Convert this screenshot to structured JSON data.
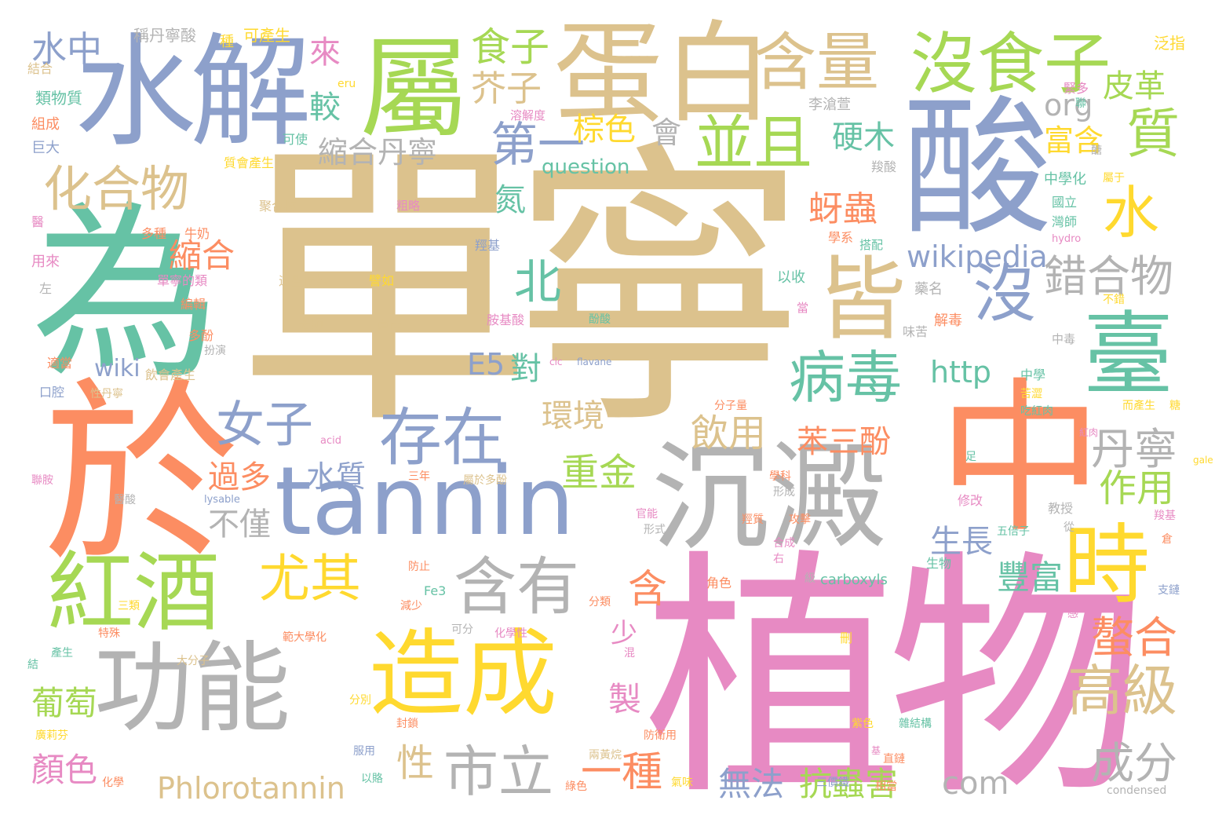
{
  "palette": {
    "tan": "#dcc28d",
    "orange": "#fc8d62",
    "blue": "#8da0cb",
    "pink": "#e78ac3",
    "green": "#a6d854",
    "yellow": "#ffd92f",
    "teal": "#66c2a5",
    "gray": "#b3b3b3"
  },
  "words": [
    {
      "text": "單寧",
      "color": "tan"
    },
    {
      "text": "植物",
      "color": "pink"
    },
    {
      "text": "於",
      "color": "orange"
    },
    {
      "text": "為",
      "color": "teal"
    },
    {
      "text": "中",
      "color": "orange"
    },
    {
      "text": "酸",
      "color": "blue"
    },
    {
      "text": "沉澱",
      "color": "gray"
    },
    {
      "text": "水解",
      "color": "blue"
    },
    {
      "text": "蛋白",
      "color": "tan"
    },
    {
      "text": "屬",
      "color": "green"
    },
    {
      "text": "tannin",
      "color": "blue"
    },
    {
      "text": "功能",
      "color": "gray"
    },
    {
      "text": "造成",
      "color": "yellow"
    },
    {
      "text": "紅酒",
      "color": "green"
    },
    {
      "text": "臺",
      "color": "teal"
    },
    {
      "text": "時",
      "color": "yellow"
    },
    {
      "text": "含量",
      "color": "tan"
    },
    {
      "text": "沒食子",
      "color": "green"
    },
    {
      "text": "皆",
      "color": "tan"
    },
    {
      "text": "並且",
      "color": "green"
    },
    {
      "text": "存在",
      "color": "blue"
    },
    {
      "text": "含有",
      "color": "gray"
    },
    {
      "text": "病毒",
      "color": "teal"
    },
    {
      "text": "尤其",
      "color": "yellow"
    },
    {
      "text": "化合物",
      "color": "tan"
    },
    {
      "text": "女子",
      "color": "blue"
    },
    {
      "text": "沒",
      "color": "blue"
    },
    {
      "text": "水",
      "color": "yellow"
    },
    {
      "text": "質",
      "color": "green"
    },
    {
      "text": "第一",
      "color": "blue"
    },
    {
      "text": "高級",
      "color": "tan"
    },
    {
      "text": "市立",
      "color": "gray"
    },
    {
      "text": "水中",
      "color": "blue"
    },
    {
      "text": "食子",
      "color": "green"
    },
    {
      "text": "芥子",
      "color": "tan"
    },
    {
      "text": "錯合物",
      "color": "gray"
    },
    {
      "text": "丹寧",
      "color": "gray"
    },
    {
      "text": "成分",
      "color": "gray"
    },
    {
      "text": "螯合",
      "color": "orange"
    },
    {
      "text": "一種",
      "color": "orange"
    },
    {
      "text": "皮革",
      "color": "green"
    },
    {
      "text": "縮合丹寧",
      "color": "gray"
    },
    {
      "text": "蚜蟲",
      "color": "orange"
    },
    {
      "text": "北",
      "color": "teal"
    },
    {
      "text": "重金",
      "color": "green"
    },
    {
      "text": "飲用",
      "color": "tan"
    },
    {
      "text": "作用",
      "color": "green"
    },
    {
      "text": "苯三酚",
      "color": "orange"
    },
    {
      "text": "Phlorotannin",
      "color": "tan"
    },
    {
      "text": "無法",
      "color": "blue"
    },
    {
      "text": "抗蟲害",
      "color": "green"
    },
    {
      "text": "com",
      "color": "gray"
    },
    {
      "text": "葡萄",
      "color": "green"
    },
    {
      "text": "顏色",
      "color": "pink"
    },
    {
      "text": "wikipedia",
      "color": "blue"
    },
    {
      "text": "http",
      "color": "teal"
    },
    {
      "text": "環境",
      "color": "tan"
    },
    {
      "text": "生長",
      "color": "blue"
    },
    {
      "text": "豐富",
      "color": "teal"
    },
    {
      "text": "不僅",
      "color": "gray"
    },
    {
      "text": "過多",
      "color": "orange"
    },
    {
      "text": "水質",
      "color": "blue"
    },
    {
      "text": "縮合",
      "color": "orange"
    },
    {
      "text": "wiki",
      "color": "blue"
    },
    {
      "text": "來",
      "color": "pink"
    },
    {
      "text": "較",
      "color": "teal"
    },
    {
      "text": "棕色",
      "color": "yellow"
    },
    {
      "text": "會",
      "color": "gray"
    },
    {
      "text": "硬木",
      "color": "teal"
    },
    {
      "text": "富含",
      "color": "yellow"
    },
    {
      "text": "org",
      "color": "gray"
    },
    {
      "text": "question",
      "color": "teal"
    },
    {
      "text": "氮",
      "color": "teal"
    },
    {
      "text": "E5",
      "color": "blue"
    },
    {
      "text": "對",
      "color": "teal"
    },
    {
      "text": "含",
      "color": "orange"
    },
    {
      "text": "少",
      "color": "pink"
    },
    {
      "text": "製",
      "color": "pink"
    },
    {
      "text": "性",
      "color": "tan"
    },
    {
      "text": "稱丹寧酸",
      "color": "gray"
    },
    {
      "text": "可產生",
      "color": "yellow"
    },
    {
      "text": "種",
      "color": "yellow"
    },
    {
      "text": "泛指",
      "color": "yellow"
    },
    {
      "text": "結合",
      "color": "tan"
    },
    {
      "text": "類物質",
      "color": "teal"
    },
    {
      "text": "組成",
      "color": "orange"
    },
    {
      "text": "巨大",
      "color": "blue"
    },
    {
      "text": "eru",
      "color": "yellow"
    },
    {
      "text": "溶解度",
      "color": "pink"
    },
    {
      "text": "李滄萱",
      "color": "gray"
    },
    {
      "text": "可使",
      "color": "teal"
    },
    {
      "text": "質會產生",
      "color": "yellow"
    },
    {
      "text": "緊多",
      "color": "pink"
    },
    {
      "text": "聯",
      "color": "teal"
    },
    {
      "text": "醣",
      "color": "gray"
    },
    {
      "text": "羧酸",
      "color": "gray"
    },
    {
      "text": "中學化",
      "color": "teal"
    },
    {
      "text": "屬于",
      "color": "yellow"
    },
    {
      "text": "國立",
      "color": "teal"
    },
    {
      "text": "灣師",
      "color": "teal"
    },
    {
      "text": "hydro",
      "color": "pink"
    },
    {
      "text": "藥名",
      "color": "gray"
    },
    {
      "text": "不錯",
      "color": "yellow"
    },
    {
      "text": "解毒",
      "color": "orange"
    },
    {
      "text": "聚合物",
      "color": "tan"
    },
    {
      "text": "粗略",
      "color": "pink"
    },
    {
      "text": "多種",
      "color": "orange"
    },
    {
      "text": "牛奶",
      "color": "orange"
    },
    {
      "text": "醫",
      "color": "pink"
    },
    {
      "text": "用來",
      "color": "pink"
    },
    {
      "text": "左",
      "color": "gray"
    },
    {
      "text": "羥基",
      "color": "blue"
    },
    {
      "text": "學系",
      "color": "orange"
    },
    {
      "text": "搭配",
      "color": "teal"
    },
    {
      "text": "以收",
      "color": "teal"
    },
    {
      "text": "這些傳染",
      "color": "tan"
    },
    {
      "text": "譬如",
      "color": "yellow"
    },
    {
      "text": "單寧的類",
      "color": "pink"
    },
    {
      "text": "編輯",
      "color": "orange"
    },
    {
      "text": "老師",
      "color": "tan"
    },
    {
      "text": "責任",
      "color": "tan"
    },
    {
      "text": "胺基酸",
      "color": "pink"
    },
    {
      "text": "酚酸",
      "color": "teal"
    },
    {
      "text": "當",
      "color": "pink"
    },
    {
      "text": "味苦",
      "color": "gray"
    },
    {
      "text": "中毒",
      "color": "gray"
    },
    {
      "text": "多酚",
      "color": "orange"
    },
    {
      "text": "扮演",
      "color": "gray"
    },
    {
      "text": "適當",
      "color": "orange"
    },
    {
      "text": "飲會產生",
      "color": "tan"
    },
    {
      "text": "cic",
      "color": "pink"
    },
    {
      "text": "flavane",
      "color": "blue"
    },
    {
      "text": "中學",
      "color": "teal"
    },
    {
      "text": "苦澀",
      "color": "yellow"
    },
    {
      "text": "吃紅肉",
      "color": "teal"
    },
    {
      "text": "口腔",
      "color": "blue"
    },
    {
      "text": "性丹寧",
      "color": "tan"
    },
    {
      "text": "而產生",
      "color": "yellow"
    },
    {
      "text": "糖",
      "color": "yellow"
    },
    {
      "text": "分子量",
      "color": "orange"
    },
    {
      "text": "紅肉",
      "color": "pink"
    },
    {
      "text": "acid",
      "color": "pink"
    },
    {
      "text": "足",
      "color": "teal"
    },
    {
      "text": "三年",
      "color": "orange"
    },
    {
      "text": "gale",
      "color": "yellow"
    },
    {
      "text": "聯胺",
      "color": "pink"
    },
    {
      "text": "屬於多酚",
      "color": "tan"
    },
    {
      "text": "學科",
      "color": "orange"
    },
    {
      "text": "形成",
      "color": "gray"
    },
    {
      "text": "lysable",
      "color": "blue"
    },
    {
      "text": "醫酸",
      "color": "gray"
    },
    {
      "text": "修改",
      "color": "pink"
    },
    {
      "text": "教授",
      "color": "gray"
    },
    {
      "text": "官能",
      "color": "pink"
    },
    {
      "text": "形式",
      "color": "gray"
    },
    {
      "text": "羧基",
      "color": "pink"
    },
    {
      "text": "從",
      "color": "gray"
    },
    {
      "text": "羥質",
      "color": "orange"
    },
    {
      "text": "攻擊",
      "color": "orange"
    },
    {
      "text": "倉",
      "color": "orange"
    },
    {
      "text": "五倍子",
      "color": "teal"
    },
    {
      "text": "合成",
      "color": "pink"
    },
    {
      "text": "右",
      "color": "pink"
    },
    {
      "text": "防止",
      "color": "orange"
    },
    {
      "text": "生物",
      "color": "teal"
    },
    {
      "text": "角色",
      "color": "orange"
    },
    {
      "text": "級",
      "color": "gray"
    },
    {
      "text": "carboxyls",
      "color": "teal"
    },
    {
      "text": "支鏈",
      "color": "blue"
    },
    {
      "text": "三類",
      "color": "yellow"
    },
    {
      "text": "Fe3",
      "color": "teal"
    },
    {
      "text": "分類",
      "color": "orange"
    },
    {
      "text": "減少",
      "color": "orange"
    },
    {
      "text": "可分",
      "color": "gray"
    },
    {
      "text": "感",
      "color": "pink"
    },
    {
      "text": "結",
      "color": "teal"
    },
    {
      "text": "特殊",
      "color": "orange"
    },
    {
      "text": "範大學化",
      "color": "orange"
    },
    {
      "text": "化學性",
      "color": "pink"
    },
    {
      "text": "刪",
      "color": "yellow"
    },
    {
      "text": "產生",
      "color": "teal"
    },
    {
      "text": "大分子",
      "color": "tan"
    },
    {
      "text": "混",
      "color": "pink"
    },
    {
      "text": "分別",
      "color": "yellow"
    },
    {
      "text": "紫色",
      "color": "yellow"
    },
    {
      "text": "雜結構",
      "color": "teal"
    },
    {
      "text": "廣莉芬",
      "color": "yellow"
    },
    {
      "text": "封鎖",
      "color": "orange"
    },
    {
      "text": "服用",
      "color": "blue"
    },
    {
      "text": "防衛用",
      "color": "orange"
    },
    {
      "text": "基",
      "color": "pink"
    },
    {
      "text": "兩黃烷",
      "color": "tan"
    },
    {
      "text": "直鏈",
      "color": "orange"
    },
    {
      "text": "化學",
      "color": "orange"
    },
    {
      "text": "以賂",
      "color": "teal"
    },
    {
      "text": "綠色",
      "color": "orange"
    },
    {
      "text": "氣味",
      "color": "yellow"
    },
    {
      "text": "三價鐵",
      "color": "blue"
    },
    {
      "text": "相當",
      "color": "orange"
    },
    {
      "text": "condensed",
      "color": "gray"
    }
  ]
}
